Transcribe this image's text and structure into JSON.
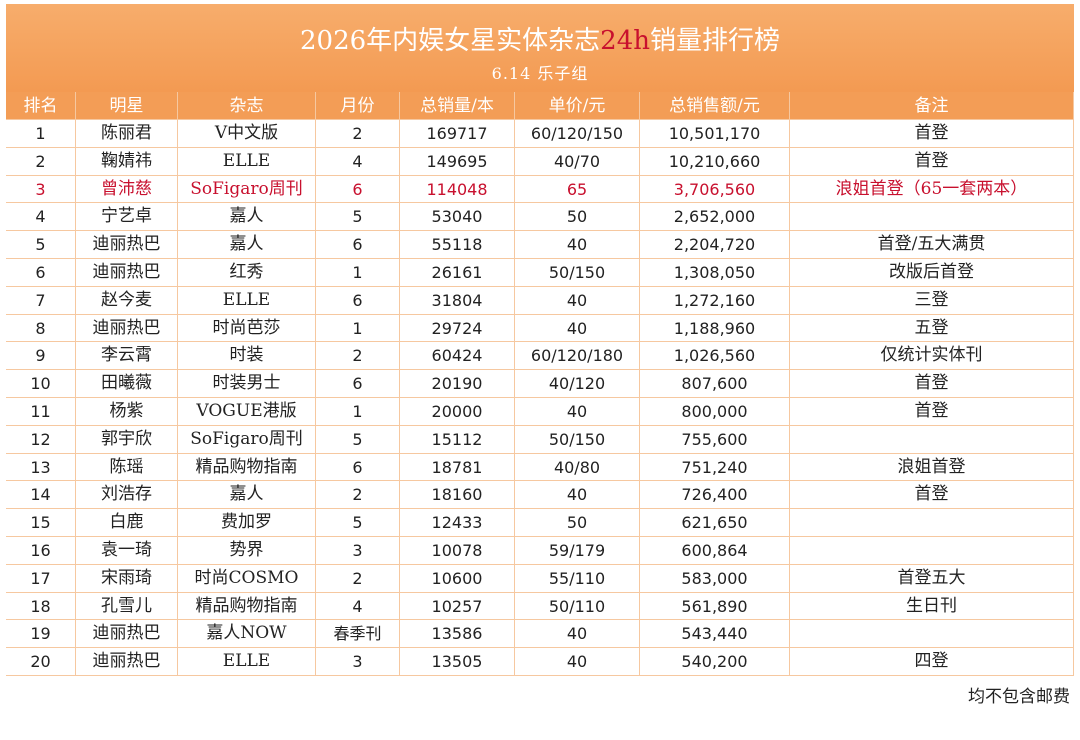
{
  "header": {
    "title_before": "2026年内娱女星实体杂志",
    "title_highlight": "24h",
    "title_after": "销量排行榜",
    "subtitle": "6.14 乐子组"
  },
  "table": {
    "columns": [
      "排名",
      "明星",
      "杂志",
      "月份",
      "总销量/本",
      "单价/元",
      "总销售额/元",
      "备注"
    ],
    "rows": [
      [
        "1",
        "陈丽君",
        "V中文版",
        "2",
        "169717",
        "60/120/150",
        "10,501,170",
        "首登"
      ],
      [
        "2",
        "鞠婧祎",
        "ELLE",
        "4",
        "149695",
        "40/70",
        "10,210,660",
        "首登"
      ],
      [
        "3",
        "曾沛慈",
        "SoFigaro周刊",
        "6",
        "114048",
        "65",
        "3,706,560",
        "浪姐首登（65一套两本）"
      ],
      [
        "4",
        "宁艺卓",
        "嘉人",
        "5",
        "53040",
        "50",
        "2,652,000",
        null
      ],
      [
        "5",
        "迪丽热巴",
        "嘉人",
        "6",
        "55118",
        "40",
        "2,204,720",
        "首登/五大满贯"
      ],
      [
        "6",
        "迪丽热巴",
        "红秀",
        "1",
        "26161",
        "50/150",
        "1,308,050",
        "改版后首登"
      ],
      [
        "7",
        "赵今麦",
        "ELLE",
        "6",
        "31804",
        "40",
        "1,272,160",
        "三登"
      ],
      [
        "8",
        "迪丽热巴",
        "时尚芭莎",
        "1",
        "29724",
        "40",
        "1,188,960",
        "五登"
      ],
      [
        "9",
        "李云霄",
        "时装",
        "2",
        "60424",
        "60/120/180",
        "1,026,560",
        "仅统计实体刊"
      ],
      [
        "10",
        "田曦薇",
        "时装男士",
        "6",
        "20190",
        "40/120",
        "807,600",
        "首登"
      ],
      [
        "11",
        "杨紫",
        "VOGUE港版",
        "1",
        "20000",
        "40",
        "800,000",
        "首登"
      ],
      [
        "12",
        "郭宇欣",
        "SoFigaro周刊",
        "5",
        "15112",
        "50/150",
        "755,600",
        null
      ],
      [
        "13",
        "陈瑶",
        "精品购物指南",
        "6",
        "18781",
        "40/80",
        "751,240",
        "浪姐首登"
      ],
      [
        "14",
        "刘浩存",
        "嘉人",
        "2",
        "18160",
        "40",
        "726,400",
        "首登"
      ],
      [
        "15",
        "白鹿",
        "费加罗",
        "5",
        "12433",
        "50",
        "621,650",
        null
      ],
      [
        "16",
        "袁一琦",
        "势界",
        "3",
        "10078",
        "59/179",
        "600,864",
        null
      ],
      [
        "17",
        "宋雨琦",
        "时尚COSMO",
        "2",
        "10600",
        "55/110",
        "583,000",
        "首登五大"
      ],
      [
        "18",
        "孔雪儿",
        "精品购物指南",
        "4",
        "10257",
        "50/110",
        "561,890",
        "生日刊"
      ],
      [
        "19",
        "迪丽热巴",
        "嘉人NOW",
        "春季刊",
        "13586",
        "40",
        "543,440",
        null
      ],
      [
        "20",
        "迪丽热巴",
        "ELLE",
        "3",
        "13505",
        "40",
        "540,200",
        "四登"
      ]
    ],
    "highlight": {
      "row": 2,
      "color": "#c8102e"
    }
  },
  "footer": {
    "note": "均不包含邮费"
  }
}
